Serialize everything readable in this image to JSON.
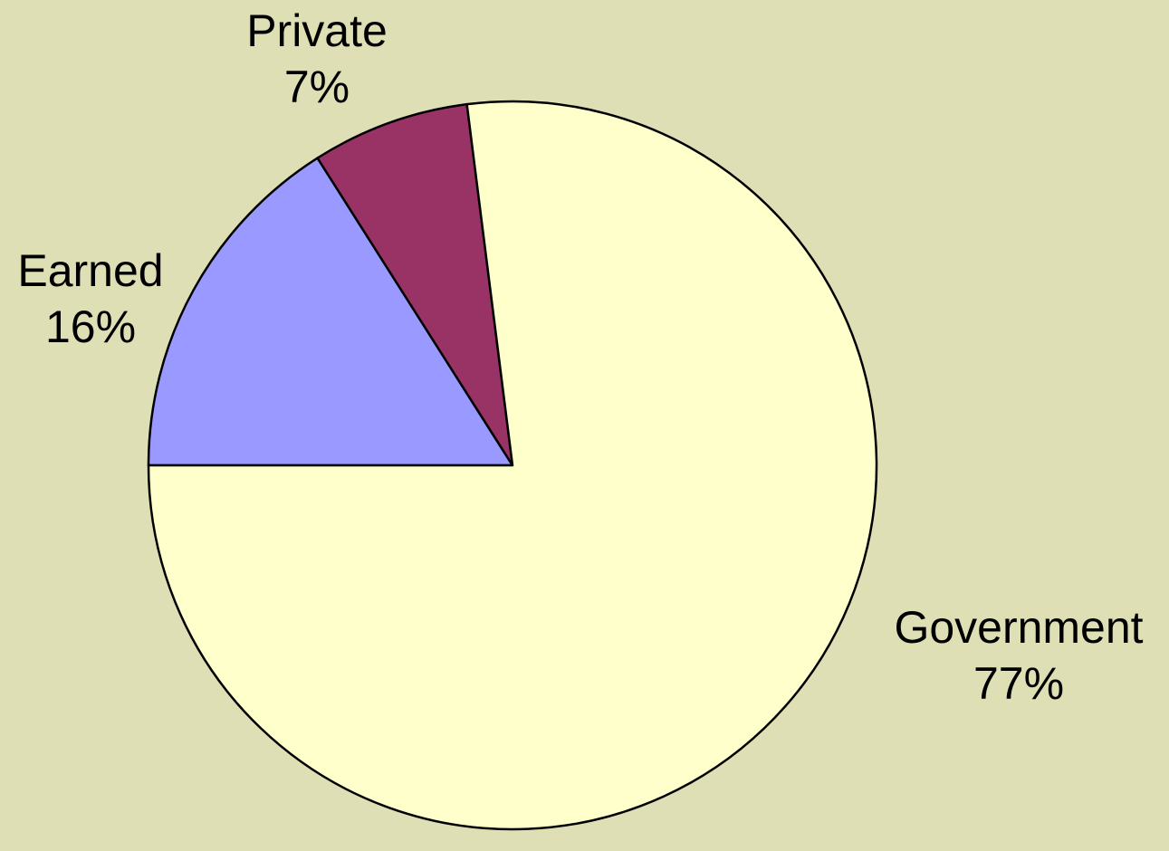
{
  "background_color": "#dfdfb5",
  "chart_data": {
    "type": "pie",
    "title": "",
    "start_angle_deg": 180,
    "direction": "clockwise",
    "slices": [
      {
        "label": "Earned",
        "value": 16,
        "value_label": "16%",
        "color": "#9999ff"
      },
      {
        "label": "Private",
        "value": 7,
        "value_label": "7%",
        "color": "#993366"
      },
      {
        "label": "Government",
        "value": 77,
        "value_label": "77%",
        "color": "#ffffcc"
      }
    ],
    "legend": "none",
    "stroke_color": "#000000"
  }
}
